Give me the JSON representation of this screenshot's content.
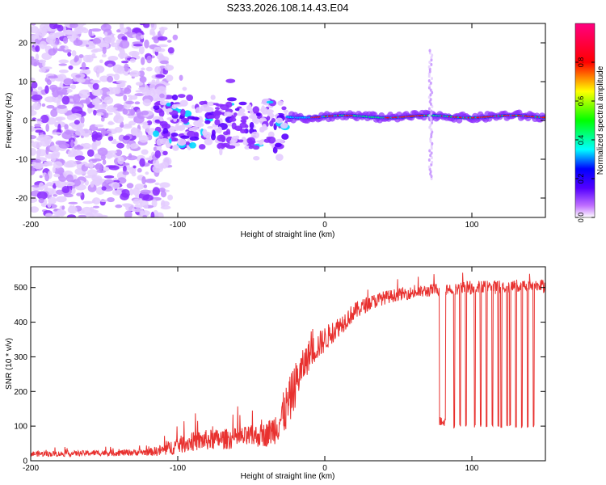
{
  "title": "S233.2026.108.14.43.E04",
  "chart_data": [
    {
      "type": "heatmap",
      "title": "S233.2026.108.14.43.E04",
      "xlabel": "Height of straight line (km)",
      "ylabel": "Frequency (Hz)",
      "xlim": [
        -200,
        150
      ],
      "ylim": [
        -25,
        25
      ],
      "xticks": [
        -200,
        -100,
        0,
        100
      ],
      "xtick_labels": [
        "-200",
        "-100",
        "0",
        "100"
      ],
      "yticks": [
        -20,
        -10,
        0,
        10,
        20
      ],
      "ytick_labels": [
        "-20",
        "-10",
        "0",
        "10",
        "20"
      ],
      "colorbar": {
        "label": "Normalized spectral amplitude",
        "range": [
          0,
          1
        ],
        "ticks": [
          0.0,
          0.2,
          0.4,
          0.6,
          0.8
        ],
        "tick_labels": [
          "0.0",
          "0.2",
          "0.4",
          "0.6",
          "0.8"
        ],
        "colors": [
          "#ffffff",
          "#7a00ff",
          "#0000ff",
          "#00ffff",
          "#00ff00",
          "#ffff00",
          "#ff0000",
          "#ff0080"
        ]
      },
      "features": [
        {
          "name": "noise",
          "x_range": [
            -200,
            -110
          ],
          "freq_range": [
            -25,
            25
          ],
          "amplitude": 0.08
        },
        {
          "name": "scattered signal",
          "x_range": [
            -115,
            -25
          ],
          "freq_range": [
            -8,
            5
          ],
          "amplitude": 0.15
        },
        {
          "name": "ridge",
          "x_range": [
            -25,
            150
          ],
          "freq": 1,
          "amplitude": 0.9
        },
        {
          "name": "spike",
          "x": 72,
          "freq_range": [
            -15,
            18
          ],
          "amplitude": 0.1
        }
      ]
    },
    {
      "type": "line",
      "xlabel": "Height of straight line (km)",
      "ylabel": "SNR (10 * v/v)",
      "xlim": [
        -200,
        150
      ],
      "ylim": [
        0,
        560
      ],
      "xticks": [
        -200,
        -100,
        0,
        100
      ],
      "xtick_labels": [
        "-200",
        "-100",
        "0",
        "100"
      ],
      "yticks": [
        0,
        100,
        200,
        300,
        400,
        500
      ],
      "ytick_labels": [
        "0",
        "100",
        "200",
        "300",
        "400",
        "500"
      ],
      "line_color": "#e8312f",
      "series": [
        {
          "name": "SNR",
          "x": [
            -200,
            -180,
            -160,
            -140,
            -120,
            -110,
            -100,
            -90,
            -80,
            -70,
            -60,
            -50,
            -40,
            -35,
            -30,
            -25,
            -20,
            -15,
            -10,
            -5,
            0,
            5,
            10,
            15,
            20,
            30,
            40,
            50,
            60,
            70,
            75,
            80,
            90,
            100,
            110,
            120,
            130,
            140,
            150
          ],
          "values": [
            20,
            20,
            22,
            23,
            25,
            30,
            45,
            55,
            60,
            62,
            65,
            70,
            75,
            90,
            120,
            160,
            220,
            270,
            310,
            330,
            350,
            370,
            390,
            410,
            430,
            455,
            470,
            480,
            485,
            490,
            495,
            495,
            497,
            500,
            500,
            502,
            503,
            505,
            505
          ],
          "noise": [
            8,
            8,
            8,
            9,
            10,
            18,
            25,
            28,
            30,
            30,
            30,
            32,
            35,
            45,
            60,
            70,
            65,
            50,
            45,
            40,
            38,
            32,
            30,
            28,
            26,
            22,
            20,
            18,
            18,
            18,
            18,
            18,
            18,
            20,
            20,
            20,
            20,
            20,
            20
          ]
        }
      ],
      "dropouts": [
        {
          "x_range": [
            78,
            82
          ],
          "min": 100
        },
        {
          "x": 88,
          "min": 95
        },
        {
          "x": 92,
          "min": 95
        },
        {
          "x": 96,
          "min": 95
        },
        {
          "x": 102,
          "min": 95
        },
        {
          "x": 106,
          "min": 95
        },
        {
          "x": 110,
          "min": 95
        },
        {
          "x": 114,
          "min": 95
        },
        {
          "x": 118,
          "min": 95
        },
        {
          "x": 120,
          "min": 95
        },
        {
          "x": 124,
          "min": 95
        },
        {
          "x": 126,
          "min": 95
        },
        {
          "x": 130,
          "min": 95
        },
        {
          "x": 134,
          "min": 95
        },
        {
          "x": 138,
          "min": 95
        },
        {
          "x": 142,
          "min": 95
        }
      ]
    }
  ]
}
